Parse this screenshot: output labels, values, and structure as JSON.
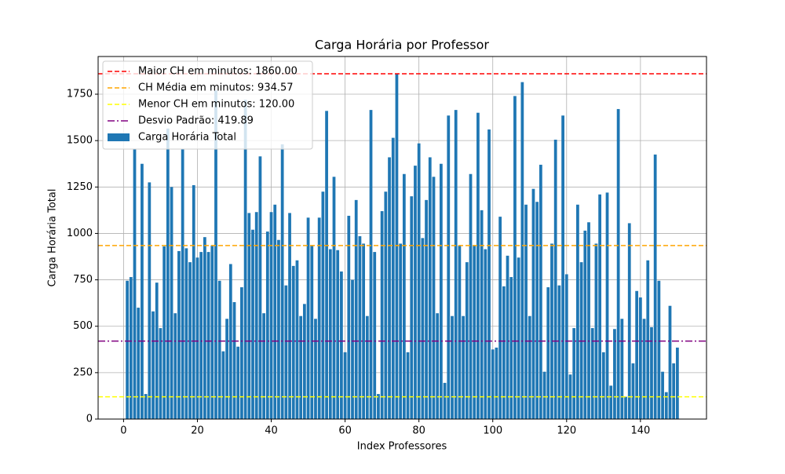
{
  "chart_data": {
    "type": "bar",
    "title": "Carga Horária por Professor",
    "xlabel": "Index Professores",
    "ylabel": "Carga Horária Total",
    "x": [
      1,
      2,
      3,
      4,
      5,
      6,
      7,
      8,
      9,
      10,
      11,
      12,
      13,
      14,
      15,
      16,
      17,
      18,
      19,
      20,
      21,
      22,
      23,
      24,
      25,
      26,
      27,
      28,
      29,
      30,
      31,
      32,
      33,
      34,
      35,
      36,
      37,
      38,
      39,
      40,
      41,
      42,
      43,
      44,
      45,
      46,
      47,
      48,
      49,
      50,
      51,
      52,
      53,
      54,
      55,
      56,
      57,
      58,
      59,
      60,
      61,
      62,
      63,
      64,
      65,
      66,
      67,
      68,
      69,
      70,
      71,
      72,
      73,
      74,
      75,
      76,
      77,
      78,
      79,
      80,
      81,
      82,
      83,
      84,
      85,
      86,
      87,
      88,
      89,
      90,
      91,
      92,
      93,
      94,
      95,
      96,
      97,
      98,
      99,
      100,
      101,
      102,
      103,
      104,
      105,
      106,
      107,
      108,
      109,
      110,
      111,
      112,
      113,
      114,
      115,
      116,
      117,
      118,
      119,
      120,
      121,
      122,
      123,
      124,
      125,
      126,
      127,
      128,
      129,
      130,
      131,
      132,
      133,
      134,
      135,
      136,
      137,
      138,
      139,
      140,
      141,
      142,
      143,
      144,
      145,
      146,
      147,
      148,
      149,
      150
    ],
    "series": [
      {
        "name": "Carga Horária Total",
        "color": "#1f77b4",
        "values": [
          745,
          765,
          1455,
          600,
          1375,
          135,
          1275,
          580,
          735,
          490,
          930,
          1565,
          1250,
          570,
          905,
          1455,
          920,
          845,
          1260,
          870,
          900,
          980,
          900,
          935,
          1770,
          745,
          365,
          540,
          835,
          630,
          390,
          710,
          1720,
          1110,
          1020,
          1115,
          1415,
          570,
          1010,
          1115,
          1155,
          965,
          1480,
          720,
          1110,
          825,
          855,
          555,
          620,
          1085,
          935,
          540,
          1085,
          1225,
          1660,
          915,
          1305,
          910,
          795,
          360,
          1095,
          750,
          1180,
          985,
          945,
          555,
          1665,
          900,
          135,
          1120,
          1225,
          1410,
          1515,
          1860,
          945,
          1320,
          360,
          1200,
          1365,
          1485,
          975,
          1180,
          1410,
          1305,
          570,
          1375,
          195,
          1635,
          555,
          1665,
          935,
          555,
          845,
          1320,
          935,
          1650,
          1125,
          915,
          1560,
          375,
          385,
          1090,
          715,
          880,
          765,
          1740,
          870,
          1815,
          1155,
          555,
          1240,
          1170,
          1370,
          255,
          710,
          945,
          1505,
          720,
          1635,
          780,
          240,
          490,
          1155,
          845,
          1015,
          1060,
          490,
          945,
          1210,
          360,
          1220,
          180,
          485,
          1670,
          540,
          120,
          1055,
          300,
          690,
          655,
          540,
          855,
          495,
          1425,
          745,
          255,
          145,
          610,
          300,
          385
        ]
      }
    ],
    "reference_lines": [
      {
        "label": "Maior CH em minutos: 1860.00",
        "value": 1860,
        "color": "#ff0000",
        "style": "dashed"
      },
      {
        "label": "CH Média em minutos: 934.57",
        "value": 934.57,
        "color": "#ffa500",
        "style": "dashed"
      },
      {
        "label": "Menor CH em minutos: 120.00",
        "value": 120,
        "color": "#ffff00",
        "style": "dashed"
      },
      {
        "label": "Desvio Padrão: 419.89",
        "value": 419.89,
        "color": "#800080",
        "style": "dashdot"
      }
    ],
    "xlim": [
      -6.89,
      157.89
    ],
    "ylim": [
      0,
      1953
    ],
    "xticks": [
      0,
      20,
      40,
      60,
      80,
      100,
      120,
      140
    ],
    "yticks": [
      0,
      250,
      500,
      750,
      1000,
      1250,
      1500,
      1750
    ],
    "grid": true,
    "legend": "upper left"
  }
}
